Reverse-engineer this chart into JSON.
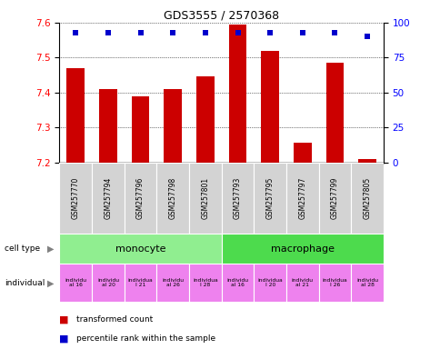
{
  "title": "GDS3555 / 2570368",
  "samples": [
    "GSM257770",
    "GSM257794",
    "GSM257796",
    "GSM257798",
    "GSM257801",
    "GSM257793",
    "GSM257795",
    "GSM257797",
    "GSM257799",
    "GSM257805"
  ],
  "bar_values": [
    7.47,
    7.41,
    7.39,
    7.41,
    7.445,
    7.595,
    7.52,
    7.255,
    7.485,
    7.21
  ],
  "percentile_values": [
    93,
    93,
    93,
    93,
    93,
    93,
    93,
    93,
    93,
    90
  ],
  "ylim_left": [
    7.2,
    7.6
  ],
  "ylim_right": [
    0,
    100
  ],
  "yticks_left": [
    7.2,
    7.3,
    7.4,
    7.5,
    7.6
  ],
  "yticks_right": [
    0,
    25,
    50,
    75,
    100
  ],
  "bar_color": "#cc0000",
  "percentile_color": "#0000cc",
  "cell_types": [
    {
      "label": "monocyte",
      "start": 0,
      "end": 5,
      "color": "#90ee90"
    },
    {
      "label": "macrophage",
      "start": 5,
      "end": 10,
      "color": "#4ddb4d"
    }
  ],
  "indiv_short": [
    "individu\nal 16",
    "individu\nal 20",
    "individua\nl 21",
    "individu\nal 26",
    "individua\nl 28",
    "individu\nal 16",
    "individua\nl 20",
    "individu\nal 21",
    "individua\nl 26",
    "individu\nal 28"
  ],
  "background_color": "#ffffff",
  "xticklabel_bg": "#d3d3d3",
  "indiv_color": "#ee82ee"
}
